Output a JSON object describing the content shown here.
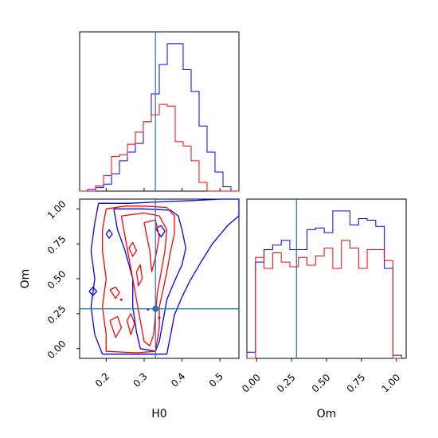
{
  "chart_data": {
    "type": "corner",
    "parameters": [
      "H0",
      "Om"
    ],
    "truth": {
      "H0": 0.33,
      "Om": 0.285
    },
    "colors": {
      "series_a": "#0000ff",
      "series_b": "#ff0000",
      "truth": "#1f77b4"
    },
    "axes": {
      "H0": {
        "label": "H0",
        "range": [
          0.13,
          0.55
        ],
        "ticks": [
          "0.2",
          "0.3",
          "0.4",
          "0.5"
        ]
      },
      "Om": {
        "label": "Om",
        "range": [
          -0.07,
          1.07
        ],
        "ticks": [
          "0.00",
          "0.25",
          "0.50",
          "0.75",
          "1.00"
        ]
      }
    },
    "hist_H0": {
      "edges": [
        0.13,
        0.151,
        0.172,
        0.193,
        0.214,
        0.235,
        0.256,
        0.277,
        0.298,
        0.319,
        0.34,
        0.361,
        0.382,
        0.403,
        0.424,
        0.445,
        0.466,
        0.487,
        0.508,
        0.529,
        0.55
      ],
      "series": [
        {
          "values": [
            0,
            2,
            4,
            8,
            20,
            35,
            45,
            55,
            80,
            112,
            146,
            170,
            170,
            140,
            115,
            75,
            45,
            22,
            5,
            0
          ]
        },
        {
          "values": [
            0,
            0,
            6,
            18,
            40,
            42,
            54,
            68,
            80,
            88,
            100,
            98,
            57,
            52,
            35,
            10,
            0,
            0,
            0,
            0
          ]
        }
      ]
    },
    "hist_Om": {
      "edges": [
        -0.07,
        -0.0085,
        0.053,
        0.1145,
        0.176,
        0.2375,
        0.299,
        0.3605,
        0.422,
        0.4835,
        0.545,
        0.6065,
        0.668,
        0.7295,
        0.791,
        0.8525,
        0.914,
        0.9755,
        1.037
      ],
      "series": [
        {
          "values": [
            4,
            62,
            70,
            73,
            76,
            70,
            70,
            83,
            84,
            81,
            95,
            95,
            86,
            90,
            89,
            85,
            58,
            2
          ]
        },
        {
          "values": [
            0,
            65,
            58,
            68,
            62,
            59,
            65,
            60,
            66,
            71,
            58,
            76,
            71,
            58,
            70,
            70,
            63,
            0
          ]
        }
      ]
    },
    "contours": {
      "series_a": [
        [
          [
            0.18,
            1.04
          ],
          [
            0.26,
            1.04
          ],
          [
            0.34,
            1.05
          ],
          [
            0.43,
            1.06
          ],
          [
            0.5,
            1.07
          ],
          [
            0.55,
            1.07
          ],
          [
            0.55,
            0.95
          ],
          [
            0.52,
            0.88
          ],
          [
            0.48,
            0.75
          ],
          [
            0.45,
            0.62
          ],
          [
            0.42,
            0.48
          ],
          [
            0.4,
            0.37
          ],
          [
            0.38,
            0.24
          ],
          [
            0.37,
            0.1
          ],
          [
            0.36,
            -0.04
          ],
          [
            0.28,
            -0.04
          ],
          [
            0.19,
            -0.04
          ],
          [
            0.17,
            0.1
          ],
          [
            0.16,
            0.3
          ],
          [
            0.17,
            0.5
          ],
          [
            0.16,
            0.7
          ],
          [
            0.17,
            0.9
          ],
          [
            0.18,
            1.04
          ]
        ],
        [
          [
            0.22,
            1.0
          ],
          [
            0.3,
            1.0
          ],
          [
            0.37,
            0.99
          ],
          [
            0.39,
            0.95
          ],
          [
            0.4,
            0.85
          ],
          [
            0.41,
            0.72
          ],
          [
            0.4,
            0.6
          ],
          [
            0.38,
            0.48
          ],
          [
            0.36,
            0.35
          ],
          [
            0.35,
            0.2
          ],
          [
            0.34,
            0.05
          ],
          [
            0.33,
            -0.02
          ],
          [
            0.29,
            0.0
          ],
          [
            0.28,
            0.12
          ],
          [
            0.27,
            0.3
          ],
          [
            0.27,
            0.5
          ],
          [
            0.25,
            0.7
          ],
          [
            0.23,
            0.85
          ],
          [
            0.22,
            1.0
          ]
        ],
        [
          [
            0.155,
            0.41
          ],
          [
            0.165,
            0.44
          ],
          [
            0.175,
            0.41
          ],
          [
            0.165,
            0.38
          ],
          [
            0.155,
            0.41
          ]
        ],
        [
          [
            0.2,
            0.82
          ],
          [
            0.208,
            0.85
          ],
          [
            0.216,
            0.82
          ],
          [
            0.208,
            0.79
          ],
          [
            0.2,
            0.82
          ]
        ],
        [
          [
            0.33,
            0.86
          ],
          [
            0.345,
            0.88
          ],
          [
            0.355,
            0.84
          ],
          [
            0.345,
            0.8
          ],
          [
            0.33,
            0.86
          ]
        ]
      ],
      "series_b": [
        [
          [
            0.2,
            1.0
          ],
          [
            0.25,
            1.02
          ],
          [
            0.3,
            1.02
          ],
          [
            0.36,
            1.01
          ],
          [
            0.38,
            0.95
          ],
          [
            0.38,
            0.82
          ],
          [
            0.37,
            0.7
          ],
          [
            0.36,
            0.55
          ],
          [
            0.35,
            0.42
          ],
          [
            0.34,
            0.3
          ],
          [
            0.34,
            0.15
          ],
          [
            0.33,
            -0.02
          ],
          [
            0.28,
            -0.03
          ],
          [
            0.2,
            -0.02
          ],
          [
            0.2,
            0.1
          ],
          [
            0.19,
            0.3
          ],
          [
            0.2,
            0.5
          ],
          [
            0.19,
            0.7
          ],
          [
            0.19,
            0.85
          ],
          [
            0.2,
            1.0
          ]
        ],
        [
          [
            0.24,
            0.95
          ],
          [
            0.3,
            0.97
          ],
          [
            0.34,
            0.95
          ],
          [
            0.36,
            0.85
          ],
          [
            0.355,
            0.7
          ],
          [
            0.345,
            0.55
          ],
          [
            0.335,
            0.4
          ],
          [
            0.33,
            0.25
          ],
          [
            0.325,
            0.1
          ],
          [
            0.315,
            0.02
          ],
          [
            0.3,
            0.05
          ],
          [
            0.29,
            0.2
          ],
          [
            0.28,
            0.35
          ],
          [
            0.27,
            0.5
          ],
          [
            0.26,
            0.65
          ],
          [
            0.25,
            0.8
          ],
          [
            0.24,
            0.95
          ]
        ],
        [
          [
            0.3,
            0.9
          ],
          [
            0.33,
            0.92
          ],
          [
            0.34,
            0.8
          ],
          [
            0.33,
            0.65
          ],
          [
            0.32,
            0.55
          ],
          [
            0.315,
            0.7
          ],
          [
            0.3,
            0.9
          ]
        ],
        [
          [
            0.21,
            0.42
          ],
          [
            0.225,
            0.44
          ],
          [
            0.235,
            0.4
          ],
          [
            0.225,
            0.36
          ],
          [
            0.21,
            0.42
          ]
        ],
        [
          [
            0.21,
            0.2
          ],
          [
            0.23,
            0.23
          ],
          [
            0.24,
            0.15
          ],
          [
            0.225,
            0.08
          ],
          [
            0.21,
            0.2
          ]
        ],
        [
          [
            0.255,
            0.2
          ],
          [
            0.265,
            0.25
          ],
          [
            0.275,
            0.18
          ],
          [
            0.265,
            0.1
          ],
          [
            0.255,
            0.2
          ]
        ],
        [
          [
            0.28,
            0.55
          ],
          [
            0.29,
            0.6
          ],
          [
            0.295,
            0.5
          ],
          [
            0.285,
            0.45
          ],
          [
            0.28,
            0.55
          ]
        ],
        [
          [
            0.26,
            0.72
          ],
          [
            0.27,
            0.76
          ],
          [
            0.28,
            0.7
          ],
          [
            0.27,
            0.66
          ],
          [
            0.26,
            0.72
          ]
        ]
      ]
    },
    "dots": {
      "series_a": [
        [
          0.34,
          0.22
        ]
      ],
      "series_b": [
        [
          0.24,
          0.35
        ],
        [
          0.31,
          0.28
        ]
      ]
    }
  }
}
